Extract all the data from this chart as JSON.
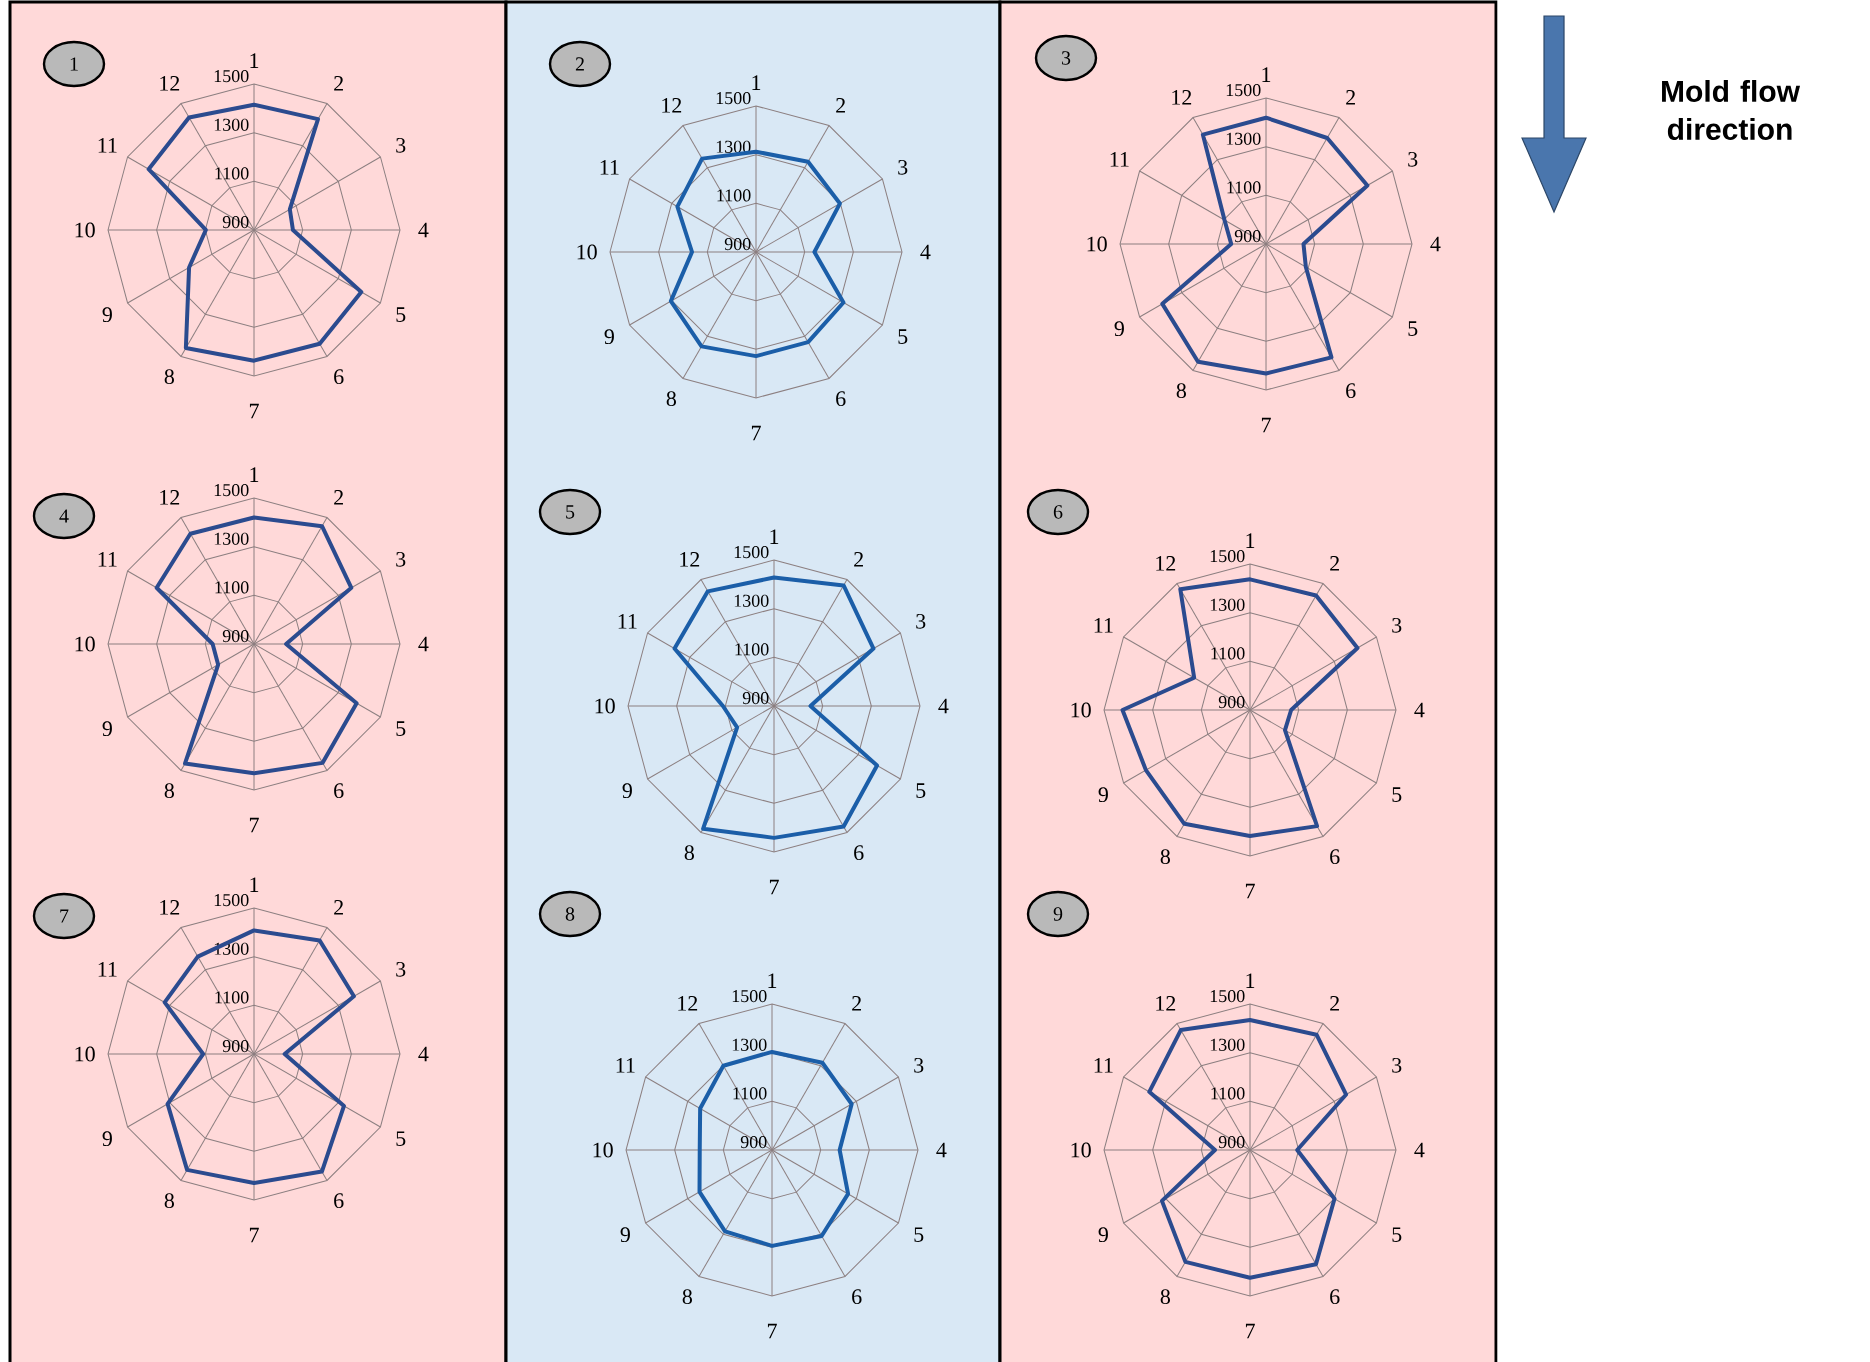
{
  "chart_data": [
    {
      "type": "radar",
      "title": "1",
      "categories": [
        "1",
        "2",
        "3",
        "4",
        "5",
        "6",
        "7",
        "8",
        "9",
        "10",
        "11",
        "12"
      ],
      "ylim": [
        900,
        1500
      ],
      "yticks": [
        900,
        1100,
        1300,
        1500
      ],
      "grid": true,
      "series": [
        {
          "color": "#2b4b8f",
          "values": [
            1415,
            1426,
            1070,
            1060,
            1409,
            1440,
            1437,
            1460,
            1208,
            1098,
            1400,
            1434
          ]
        }
      ]
    },
    {
      "type": "radar",
      "title": "2",
      "categories": [
        "1",
        "2",
        "3",
        "4",
        "5",
        "6",
        "7",
        "8",
        "9",
        "10",
        "11",
        "12"
      ],
      "ylim": [
        900,
        1500
      ],
      "yticks": [
        900,
        1100,
        1300,
        1500
      ],
      "grid": true,
      "series": [
        {
          "color": "#1b5ea8",
          "values": [
            1312,
            1328,
            1298,
            1140,
            1315,
            1328,
            1328,
            1348,
            1304,
            1163,
            1273,
            1343
          ]
        }
      ]
    },
    {
      "type": "radar",
      "title": "3",
      "categories": [
        "1",
        "2",
        "3",
        "4",
        "5",
        "6",
        "7",
        "8",
        "9",
        "10",
        "11",
        "12"
      ],
      "ylim": [
        900,
        1500
      ],
      "yticks": [
        900,
        1100,
        1300,
        1500
      ],
      "grid": true,
      "series": [
        {
          "color": "#2b4b8f",
          "values": [
            1419,
            1403,
            1381,
            1054,
            1089,
            1438,
            1432,
            1459,
            1392,
            1043,
            1097,
            1419
          ]
        }
      ]
    },
    {
      "type": "radar",
      "title": "4",
      "categories": [
        "1",
        "2",
        "3",
        "4",
        "5",
        "6",
        "7",
        "8",
        "9",
        "10",
        "11",
        "12"
      ],
      "ylim": [
        900,
        1500
      ],
      "yticks": [
        900,
        1100,
        1300,
        1500
      ],
      "grid": true,
      "series": [
        {
          "color": "#2b4b8f",
          "values": [
            1420,
            1459,
            1362,
            1032,
            1387,
            1464,
            1431,
            1467,
            1070,
            1070,
            1362,
            1423
          ]
        }
      ]
    },
    {
      "type": "radar",
      "title": "5",
      "categories": [
        "1",
        "2",
        "3",
        "4",
        "5",
        "6",
        "7",
        "8",
        "9",
        "10",
        "11",
        "12"
      ],
      "ylim": [
        900,
        1500
      ],
      "yticks": [
        900,
        1100,
        1300,
        1500
      ],
      "grid": true,
      "series": [
        {
          "color": "#1b5ea8",
          "values": [
            1428,
            1472,
            1372,
            1050,
            1389,
            1472,
            1442,
            1483,
            1075,
            1110,
            1372,
            1444
          ]
        }
      ]
    },
    {
      "type": "radar",
      "title": "6",
      "categories": [
        "1",
        "2",
        "3",
        "4",
        "5",
        "6",
        "7",
        "8",
        "9",
        "10",
        "11",
        "12"
      ],
      "ylim": [
        900,
        1500
      ],
      "yticks": [
        900,
        1100,
        1300,
        1500
      ],
      "grid": true,
      "series": [
        {
          "color": "#2b4b8f",
          "values": [
            1437,
            1443,
            1410,
            1069,
            1066,
            1451,
            1418,
            1440,
            1394,
            1424,
            1165,
            1473
          ]
        }
      ]
    },
    {
      "type": "radar",
      "title": "7",
      "categories": [
        "1",
        "2",
        "3",
        "4",
        "5",
        "6",
        "7",
        "8",
        "9",
        "10",
        "11",
        "12"
      ],
      "ylim": [
        900,
        1500
      ],
      "yticks": [
        900,
        1100,
        1300,
        1500
      ],
      "grid": true,
      "series": [
        {
          "color": "#2b4b8f",
          "values": [
            1408,
            1439,
            1374,
            1026,
            1327,
            1458,
            1430,
            1450,
            1310,
            1109,
            1324,
            1362
          ]
        }
      ]
    },
    {
      "type": "radar",
      "title": "8",
      "categories": [
        "1",
        "2",
        "3",
        "4",
        "5",
        "6",
        "7",
        "8",
        "9",
        "10",
        "11",
        "12"
      ],
      "ylim": [
        900,
        1500
      ],
      "yticks": [
        900,
        1100,
        1300,
        1500
      ],
      "grid": true,
      "series": [
        {
          "color": "#1b5ea8",
          "values": [
            1303,
            1314,
            1278,
            1178,
            1261,
            1308,
            1294,
            1286,
            1244,
            1197,
            1241,
            1300
          ]
        }
      ]
    },
    {
      "type": "radar",
      "title": "9",
      "categories": [
        "1",
        "2",
        "3",
        "4",
        "5",
        "6",
        "7",
        "8",
        "9",
        "10",
        "11",
        "12"
      ],
      "ylim": [
        900,
        1500
      ],
      "yticks": [
        900,
        1100,
        1300,
        1500
      ],
      "grid": true,
      "series": [
        {
          "color": "#2b4b8f",
          "values": [
            1434,
            1447,
            1356,
            1094,
            1301,
            1442,
            1425,
            1431,
            1318,
            1044,
            1378,
            1469
          ]
        }
      ]
    },
    {
      "type": "other",
      "title": "Mold flow direction"
    }
  ]
}
